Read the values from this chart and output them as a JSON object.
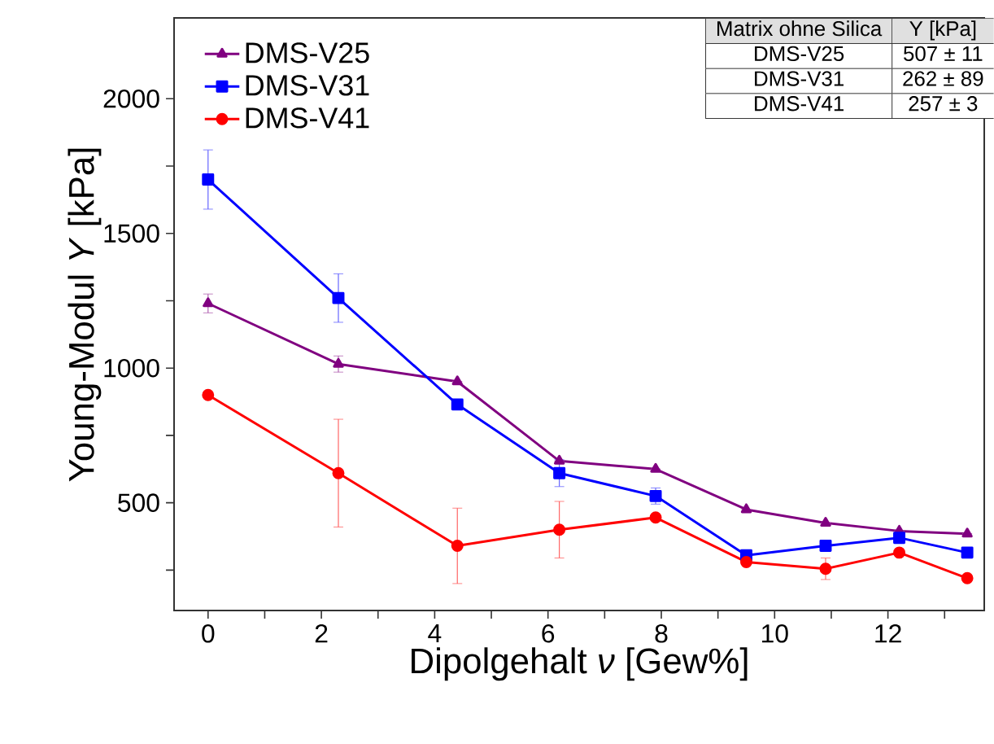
{
  "chart_data": {
    "type": "line",
    "xlabel": "Dipolgehalt *ν* [Gew%]",
    "ylabel": "Young-Modul *Y* [kPa]",
    "x": [
      0,
      2.3,
      4.4,
      6.2,
      7.9,
      9.5,
      10.9,
      12.2,
      13.4
    ],
    "series": [
      {
        "name": "DMS-V25",
        "color": "#800080",
        "marker": "triangle",
        "values": [
          1240,
          1015,
          950,
          655,
          625,
          475,
          425,
          395,
          385
        ],
        "errors": [
          35,
          30,
          null,
          null,
          null,
          null,
          null,
          null,
          null
        ]
      },
      {
        "name": "DMS-V31",
        "color": "#0000ff",
        "marker": "square",
        "values": [
          1700,
          1260,
          865,
          610,
          525,
          305,
          340,
          370,
          315
        ],
        "errors": [
          110,
          90,
          null,
          50,
          30,
          null,
          null,
          null,
          null
        ]
      },
      {
        "name": "DMS-V41",
        "color": "#ff0000",
        "marker": "circle",
        "values": [
          900,
          610,
          340,
          400,
          445,
          280,
          255,
          315,
          220
        ],
        "errors": [
          null,
          200,
          140,
          105,
          null,
          null,
          40,
          null,
          null
        ]
      }
    ],
    "xlim": [
      -0.6,
      13.7
    ],
    "ylim": [
      100,
      2300
    ],
    "xticks": [
      0,
      {
        "value": 1,
        "label": null
      },
      2,
      {
        "value": 3,
        "label": null
      },
      4,
      {
        "value": 5,
        "label": null
      },
      6,
      {
        "value": 7,
        "label": null
      },
      8,
      {
        "value": 9,
        "label": null
      },
      10,
      {
        "value": 11,
        "label": null
      },
      12,
      {
        "value": 13,
        "label": null
      }
    ],
    "yticks": [
      {
        "value": 250,
        "label": null
      },
      500,
      {
        "value": 750,
        "label": null
      },
      1000,
      {
        "value": 1250,
        "label": null
      },
      1500,
      {
        "value": 1750,
        "label": null
      },
      2000
    ],
    "legend": "top left",
    "annotations": [
      "Matrix ohne Silica",
      "Y [kPa]",
      "DMS-V25",
      "507 ± 11",
      "DMS-V31",
      "262 ± 89",
      "DMS-V41",
      "257 ± 3"
    ]
  }
}
